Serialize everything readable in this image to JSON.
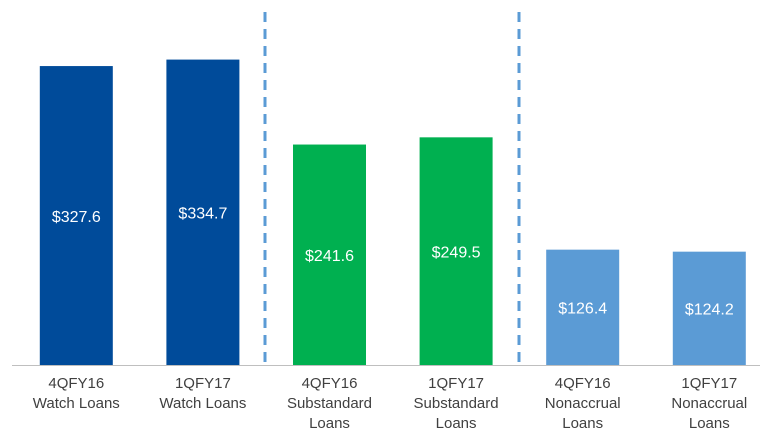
{
  "chart_data": {
    "type": "bar",
    "categories": [
      [
        "4QFY16",
        "Watch Loans"
      ],
      [
        "1QFY17",
        "Watch Loans"
      ],
      [
        "4QFY16",
        "Substandard",
        "Loans"
      ],
      [
        "1QFY17",
        "Substandard",
        "Loans"
      ],
      [
        "4QFY16",
        "Nonaccrual",
        "Loans"
      ],
      [
        "1QFY17",
        "Nonaccrual",
        "Loans"
      ]
    ],
    "values": [
      327.6,
      334.7,
      241.6,
      249.5,
      126.4,
      124.2
    ],
    "value_labels": [
      "$327.6",
      "$334.7",
      "$241.6",
      "$249.5",
      "$126.4",
      "$124.2"
    ],
    "colors": [
      "#004b9a",
      "#004b9a",
      "#00b050",
      "#00b050",
      "#5b9bd5",
      "#5b9bd5"
    ],
    "ylim": [
      0,
      400
    ]
  }
}
